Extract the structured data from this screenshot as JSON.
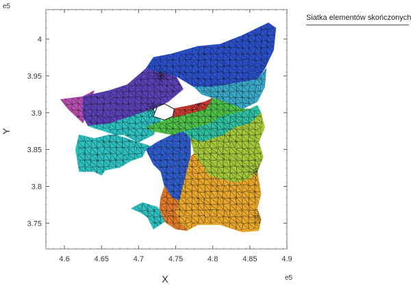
{
  "chart_data": {
    "type": "mesh",
    "xlabel": "X",
    "ylabel": "Y",
    "x_exponent": "e5",
    "y_exponent": "e5",
    "xlim": [
      4.575,
      4.9
    ],
    "ylim": [
      3.715,
      4.04
    ],
    "x_ticks": [
      "4.6",
      "4.65",
      "4.7",
      "4.75",
      "4.8",
      "4.85",
      "4.9"
    ],
    "y_ticks": [
      "3.75",
      "3.8",
      "3.85",
      "3.9",
      "3.95",
      "4"
    ],
    "legend": [
      "Siatka elementów skończonych"
    ],
    "legend_position": "top-right-outside",
    "regions": [
      {
        "color": "#b84fb0",
        "polygon": [
          [
            4.595,
            3.918
          ],
          [
            4.625,
            3.922
          ],
          [
            4.64,
            3.93
          ],
          [
            4.632,
            3.905
          ],
          [
            4.625,
            3.886
          ],
          [
            4.605,
            3.905
          ]
        ]
      },
      {
        "color": "#5a3fb5",
        "polygon": [
          [
            4.625,
            3.922
          ],
          [
            4.66,
            3.93
          ],
          [
            4.685,
            3.938
          ],
          [
            4.71,
            3.96
          ],
          [
            4.73,
            3.955
          ],
          [
            4.75,
            3.95
          ],
          [
            4.76,
            3.932
          ],
          [
            4.74,
            3.915
          ],
          [
            4.72,
            3.905
          ],
          [
            4.69,
            3.895
          ],
          [
            4.66,
            3.885
          ],
          [
            4.632,
            3.882
          ],
          [
            4.625,
            3.895
          ]
        ]
      },
      {
        "color": "#2a4fc8",
        "polygon": [
          [
            4.71,
            3.96
          ],
          [
            4.72,
            3.975
          ],
          [
            4.745,
            3.98
          ],
          [
            4.78,
            3.99
          ],
          [
            4.81,
            3.993
          ],
          [
            4.84,
            4.005
          ],
          [
            4.875,
            4.022
          ],
          [
            4.885,
            4.015
          ],
          [
            4.882,
            3.985
          ],
          [
            4.87,
            3.96
          ],
          [
            4.86,
            3.945
          ],
          [
            4.83,
            3.94
          ],
          [
            4.8,
            3.935
          ],
          [
            4.775,
            3.935
          ],
          [
            4.75,
            3.95
          ],
          [
            4.73,
            3.955
          ]
        ]
      },
      {
        "color": "#3aa8c8",
        "polygon": [
          [
            4.775,
            3.935
          ],
          [
            4.8,
            3.935
          ],
          [
            4.83,
            3.94
          ],
          [
            4.86,
            3.945
          ],
          [
            4.872,
            3.96
          ],
          [
            4.87,
            3.935
          ],
          [
            4.86,
            3.915
          ],
          [
            4.84,
            3.905
          ],
          [
            4.815,
            3.915
          ],
          [
            4.8,
            3.92
          ],
          [
            4.785,
            3.925
          ]
        ]
      },
      {
        "color": "#c83a32",
        "polygon": [
          [
            4.725,
            3.908
          ],
          [
            4.745,
            3.905
          ],
          [
            4.77,
            3.91
          ],
          [
            4.79,
            3.915
          ],
          [
            4.8,
            3.92
          ],
          [
            4.792,
            3.905
          ],
          [
            4.775,
            3.9
          ],
          [
            4.755,
            3.895
          ],
          [
            4.74,
            3.892
          ],
          [
            4.728,
            3.895
          ]
        ]
      },
      {
        "color": "#2ec0c0",
        "polygon": [
          [
            4.632,
            3.882
          ],
          [
            4.66,
            3.885
          ],
          [
            4.69,
            3.895
          ],
          [
            4.72,
            3.905
          ],
          [
            4.725,
            3.895
          ],
          [
            4.73,
            3.89
          ],
          [
            4.72,
            3.87
          ],
          [
            4.7,
            3.86
          ],
          [
            4.68,
            3.87
          ],
          [
            4.66,
            3.87
          ],
          [
            4.64,
            3.865
          ],
          [
            4.62,
            3.87
          ],
          [
            4.615,
            3.85
          ],
          [
            4.62,
            3.82
          ],
          [
            4.64,
            3.82
          ],
          [
            4.65,
            3.815
          ],
          [
            4.655,
            3.822
          ],
          [
            4.675,
            3.826
          ],
          [
            4.69,
            3.835
          ],
          [
            4.705,
            3.84
          ],
          [
            4.71,
            3.85
          ],
          [
            4.725,
            3.86
          ],
          [
            4.745,
            3.87
          ],
          [
            4.76,
            3.875
          ],
          [
            4.76,
            3.86
          ],
          [
            4.73,
            3.85
          ]
        ]
      },
      {
        "color": "#2e5ccc",
        "polygon": [
          [
            4.71,
            3.85
          ],
          [
            4.725,
            3.86
          ],
          [
            4.745,
            3.87
          ],
          [
            4.76,
            3.875
          ],
          [
            4.77,
            3.865
          ],
          [
            4.77,
            3.84
          ],
          [
            4.765,
            3.82
          ],
          [
            4.76,
            3.8
          ],
          [
            4.755,
            3.78
          ],
          [
            4.745,
            3.785
          ],
          [
            4.735,
            3.8
          ],
          [
            4.73,
            3.82
          ],
          [
            4.72,
            3.83
          ]
        ]
      },
      {
        "color": "#2ec0a0",
        "polygon": [
          [
            4.76,
            3.875
          ],
          [
            4.775,
            3.88
          ],
          [
            4.795,
            3.885
          ],
          [
            4.81,
            3.895
          ],
          [
            4.83,
            3.9
          ],
          [
            4.85,
            3.905
          ],
          [
            4.86,
            3.91
          ],
          [
            4.865,
            3.9
          ],
          [
            4.85,
            3.885
          ],
          [
            4.83,
            3.88
          ],
          [
            4.815,
            3.87
          ],
          [
            4.8,
            3.865
          ],
          [
            4.785,
            3.86
          ],
          [
            4.77,
            3.865
          ]
        ]
      },
      {
        "color": "#4ec048",
        "polygon": [
          [
            4.74,
            3.892
          ],
          [
            4.755,
            3.895
          ],
          [
            4.775,
            3.9
          ],
          [
            4.792,
            3.905
          ],
          [
            4.8,
            3.92
          ],
          [
            4.815,
            3.915
          ],
          [
            4.84,
            3.905
          ],
          [
            4.85,
            3.905
          ],
          [
            4.83,
            3.9
          ],
          [
            4.81,
            3.895
          ],
          [
            4.795,
            3.885
          ],
          [
            4.775,
            3.88
          ],
          [
            4.76,
            3.875
          ],
          [
            4.745,
            3.87
          ],
          [
            4.72,
            3.875
          ],
          [
            4.71,
            3.88
          ]
        ]
      },
      {
        "color": "#a2c83a",
        "polygon": [
          [
            4.77,
            3.865
          ],
          [
            4.785,
            3.86
          ],
          [
            4.8,
            3.865
          ],
          [
            4.815,
            3.87
          ],
          [
            4.83,
            3.88
          ],
          [
            4.85,
            3.885
          ],
          [
            4.865,
            3.9
          ],
          [
            4.87,
            3.88
          ],
          [
            4.862,
            3.86
          ],
          [
            4.868,
            3.84
          ],
          [
            4.86,
            3.82
          ],
          [
            4.85,
            3.81
          ],
          [
            4.83,
            3.805
          ],
          [
            4.81,
            3.81
          ],
          [
            4.795,
            3.815
          ],
          [
            4.785,
            3.83
          ],
          [
            4.775,
            3.845
          ]
        ]
      },
      {
        "color": "#e8a72c",
        "polygon": [
          [
            4.755,
            3.78
          ],
          [
            4.76,
            3.8
          ],
          [
            4.765,
            3.82
          ],
          [
            4.77,
            3.84
          ],
          [
            4.775,
            3.845
          ],
          [
            4.785,
            3.83
          ],
          [
            4.795,
            3.815
          ],
          [
            4.81,
            3.81
          ],
          [
            4.83,
            3.805
          ],
          [
            4.85,
            3.81
          ],
          [
            4.86,
            3.82
          ],
          [
            4.865,
            3.79
          ],
          [
            4.86,
            3.77
          ],
          [
            4.865,
            3.755
          ],
          [
            4.862,
            3.74
          ],
          [
            4.84,
            3.738
          ],
          [
            4.81,
            3.748
          ],
          [
            4.78,
            3.748
          ],
          [
            4.765,
            3.74
          ],
          [
            4.755,
            3.75
          ],
          [
            4.75,
            3.765
          ]
        ]
      },
      {
        "color": "#e07a2a",
        "polygon": [
          [
            4.735,
            3.8
          ],
          [
            4.745,
            3.785
          ],
          [
            4.755,
            3.78
          ],
          [
            4.75,
            3.765
          ],
          [
            4.755,
            3.75
          ],
          [
            4.765,
            3.74
          ],
          [
            4.75,
            3.742
          ],
          [
            4.735,
            3.752
          ],
          [
            4.728,
            3.768
          ],
          [
            4.73,
            3.785
          ]
        ]
      },
      {
        "color": "#2ec0c0",
        "polygon": [
          [
            4.705,
            3.778
          ],
          [
            4.725,
            3.772
          ],
          [
            4.728,
            3.768
          ],
          [
            4.735,
            3.752
          ],
          [
            4.72,
            3.742
          ],
          [
            4.712,
            3.758
          ],
          [
            4.702,
            3.765
          ],
          [
            4.69,
            3.77
          ]
        ]
      }
    ],
    "holes": [
      [
        [
          4.72,
          3.895
        ],
        [
          4.725,
          3.908
        ],
        [
          4.735,
          3.912
        ],
        [
          4.748,
          3.905
        ],
        [
          4.746,
          3.895
        ],
        [
          4.735,
          3.89
        ]
      ]
    ],
    "refinement_points": [
      [
        4.73,
        3.95
      ],
      [
        4.735,
        3.902
      ],
      [
        4.78,
        3.915
      ],
      [
        4.875,
        3.96
      ],
      [
        4.86,
        3.82
      ],
      [
        4.865,
        3.76
      ],
      [
        4.77,
        3.93
      ],
      [
        4.72,
        3.905
      ]
    ]
  }
}
